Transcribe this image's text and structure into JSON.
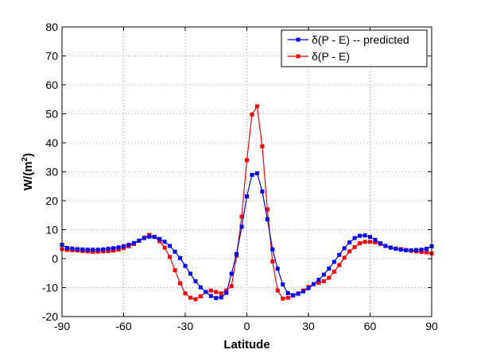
{
  "chart_data": {
    "type": "line",
    "xlabel": "Latitude",
    "ylabel": "W/(m",
    "ylabel_superscript": "2",
    "ylabel_suffix": ")",
    "xlim": [
      -90,
      90
    ],
    "ylim": [
      -20,
      80
    ],
    "xticks": [
      -90,
      -60,
      -30,
      0,
      30,
      60,
      90
    ],
    "yticks": [
      -20,
      -10,
      0,
      10,
      20,
      30,
      40,
      50,
      60,
      70,
      80
    ],
    "xtick_labels": [
      "-90",
      "-60",
      "-30",
      "0",
      "30",
      "60",
      "90"
    ],
    "ytick_labels": [
      "-20",
      "-10",
      "0",
      "10",
      "20",
      "30",
      "40",
      "50",
      "60",
      "70",
      "80"
    ],
    "grid": true,
    "legend_position": "top-right",
    "x": [
      -90,
      -87.5,
      -85,
      -82.5,
      -80,
      -77.5,
      -75,
      -72.5,
      -70,
      -67.5,
      -65,
      -62.5,
      -60,
      -57.5,
      -55,
      -52.5,
      -50,
      -47.5,
      -45,
      -42.5,
      -40,
      -37.5,
      -35,
      -32.5,
      -30,
      -27.5,
      -25,
      -22.5,
      -20,
      -17.5,
      -15,
      -12.5,
      -10,
      -7.5,
      -5,
      -2.5,
      0,
      2.5,
      5,
      7.5,
      10,
      12.5,
      15,
      17.5,
      20,
      22.5,
      25,
      27.5,
      30,
      32.5,
      35,
      37.5,
      40,
      42.5,
      45,
      47.5,
      50,
      52.5,
      55,
      57.5,
      60,
      62.5,
      65,
      67.5,
      70,
      72.5,
      75,
      77.5,
      80,
      82.5,
      85,
      87.5,
      90
    ],
    "series": [
      {
        "name": "δ(P - E) -- predicted",
        "color": "#0000ff",
        "values": [
          4.8,
          3.7,
          3.5,
          3.3,
          3.2,
          3.1,
          3.1,
          3.1,
          3.2,
          3.4,
          3.6,
          3.9,
          4.3,
          4.8,
          5.4,
          6.2,
          7.1,
          7.6,
          7.5,
          6.8,
          5.8,
          4.4,
          2.4,
          0.2,
          -2.5,
          -5.2,
          -7.8,
          -9.9,
          -11.5,
          -12.9,
          -13.6,
          -13.4,
          -11.8,
          -5.2,
          1.6,
          11.0,
          21.5,
          28.9,
          29.5,
          23.2,
          13.6,
          3.2,
          -3.5,
          -8.9,
          -11.9,
          -12.6,
          -12.1,
          -11.3,
          -10.2,
          -8.8,
          -7.3,
          -5.5,
          -3.4,
          -1.1,
          1.3,
          3.6,
          5.6,
          7.1,
          7.9,
          8.0,
          7.5,
          6.5,
          5.3,
          4.4,
          3.8,
          3.4,
          3.1,
          2.9,
          2.9,
          3.0,
          3.1,
          3.4,
          4.3
        ]
      },
      {
        "name": "δ(P - E)",
        "color": "#ff0000",
        "values": [
          3.3,
          3.0,
          2.9,
          2.8,
          2.6,
          2.5,
          2.4,
          2.4,
          2.5,
          2.6,
          2.8,
          3.1,
          3.6,
          4.3,
          5.1,
          6.2,
          7.3,
          8.2,
          7.5,
          6.0,
          3.8,
          0.6,
          -4.0,
          -8.5,
          -12.0,
          -13.5,
          -14.0,
          -13.0,
          -11.5,
          -11.0,
          -11.5,
          -12.0,
          -11.0,
          -9.5,
          1.0,
          14.5,
          34.0,
          49.8,
          52.6,
          38.8,
          17.0,
          -1.0,
          -11.0,
          -13.8,
          -13.5,
          -12.8,
          -12.0,
          -11.0,
          -9.8,
          -8.8,
          -8.3,
          -7.8,
          -6.6,
          -4.5,
          -2.2,
          0.3,
          2.5,
          4.0,
          5.3,
          5.8,
          5.8,
          5.6,
          5.1,
          4.4,
          3.8,
          3.5,
          3.3,
          3.0,
          2.7,
          2.5,
          2.3,
          2.2,
          1.8
        ]
      }
    ]
  }
}
